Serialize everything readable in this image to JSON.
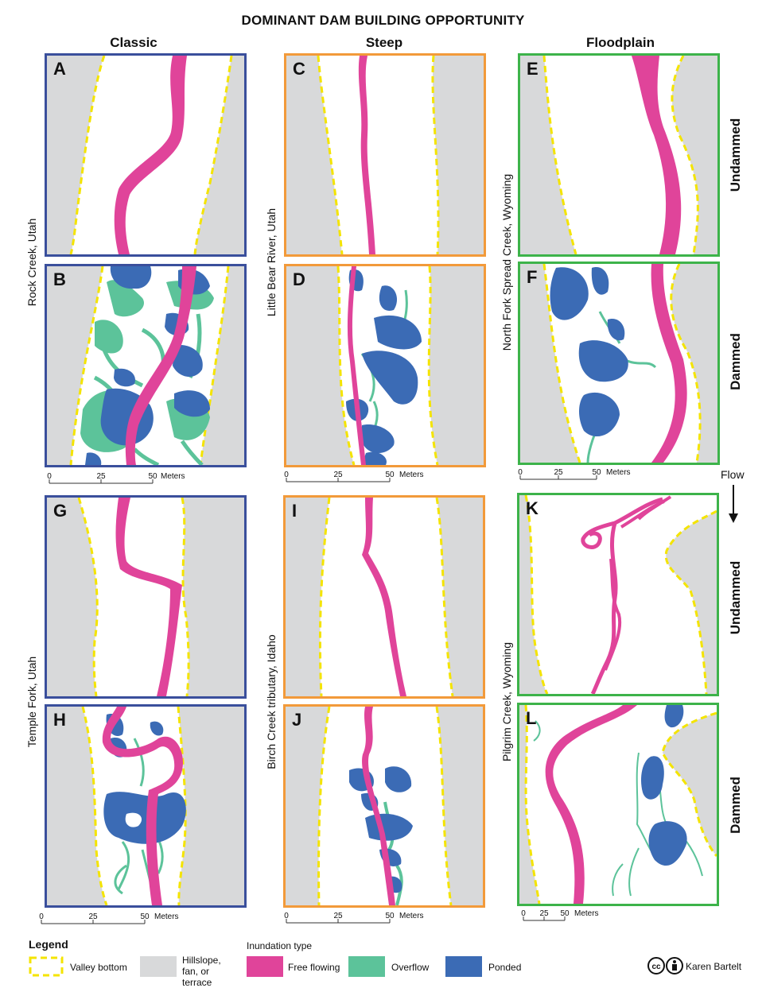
{
  "title": "DOMINANT DAM BUILDING OPPORTUNITY",
  "columns": [
    "Classic",
    "Steep",
    "Floodplain"
  ],
  "rows": {
    "undammed": "Undammed",
    "dammed": "Dammed"
  },
  "sites": {
    "rock_creek": "Rock Creek, Utah",
    "little_bear": "Little Bear River, Utah",
    "north_fork": "North Fork Spread Creek, Wyoming",
    "temple_fork": "Temple Fork, Utah",
    "birch_creek": "Birch Creek tributary, Idaho",
    "pilgrim_creek": "Pilgrim Creek, Wyoming"
  },
  "panels": [
    "A",
    "B",
    "C",
    "D",
    "E",
    "F",
    "G",
    "H",
    "I",
    "J",
    "K",
    "L"
  ],
  "scalebar": {
    "ticks": [
      "0",
      "25",
      "50"
    ],
    "unit": "Meters"
  },
  "flow_label": "Flow",
  "legend": {
    "title": "Legend",
    "valley_bottom": "Valley bottom",
    "hillslope": "Hillslope, fan, or terrace",
    "inundation_title": "Inundation type",
    "free_flowing": "Free flowing",
    "overflow": "Overflow",
    "ponded": "Ponded"
  },
  "credit": {
    "cc": "cc",
    "author": "Karen Bartelt"
  },
  "colors": {
    "free_flowing": "#e0449a",
    "overflow": "#5cc39a",
    "ponded": "#3b6bb5",
    "hillslope": "#d8d9da",
    "valley_bottom_line": "#f4e400",
    "border_classic": "#3a4f9c",
    "border_steep": "#f29a3a",
    "border_floodplain": "#3db34a"
  }
}
